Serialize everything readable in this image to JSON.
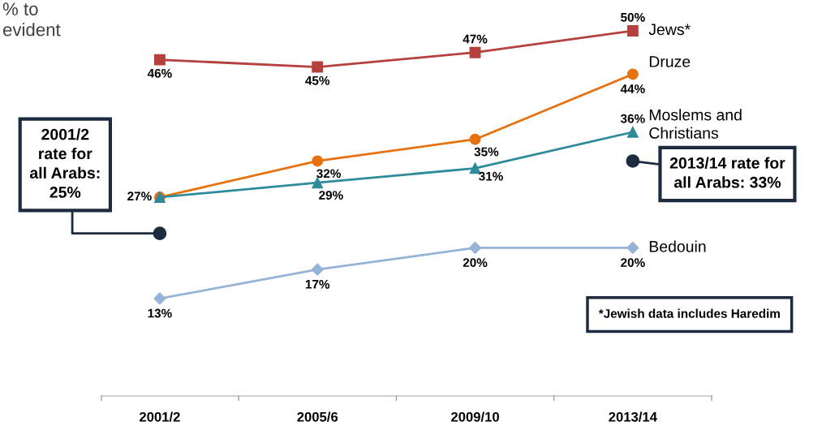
{
  "chart_data": {
    "type": "line",
    "categories": [
      "2001/2",
      "2005/6",
      "2009/10",
      "2013/14"
    ],
    "tick_labels": "x",
    "grid": false,
    "line_style": "solid",
    "series": [
      {
        "name": "Jews*",
        "color": "#b5403e",
        "marker": "square",
        "values": [
          46,
          45,
          47,
          50
        ],
        "value_labels": [
          "46%",
          "45%",
          "47%",
          "50%"
        ]
      },
      {
        "name": "Druze",
        "color": "#e8710f",
        "marker": "circle",
        "values": [
          27,
          32,
          35,
          44
        ],
        "value_labels": [
          "27%",
          "32%",
          "35%",
          "44%"
        ]
      },
      {
        "name": "Moslems and\nChristians",
        "color": "#2e8b9a",
        "marker": "triangle",
        "values": [
          27,
          29,
          31,
          36
        ],
        "value_labels": [
          null,
          "29%",
          "31%",
          "36%"
        ]
      },
      {
        "name": "Bedouin",
        "color": "#95b3d7",
        "marker": "diamond",
        "values": [
          13,
          17,
          20,
          20
        ],
        "value_labels": [
          "13%",
          "17%",
          "20%",
          "20%"
        ]
      }
    ],
    "annotations": [
      {
        "text": "2001/2\nrate for\nall Arabs:\n25%",
        "x": "2001/2",
        "y": 22
      },
      {
        "text": "2013/14 rate for\nall Arabs: 33%",
        "x": "2013/14",
        "y": 32
      },
      "*Jewish data includes Haredim",
      "% to\nevident"
    ]
  }
}
